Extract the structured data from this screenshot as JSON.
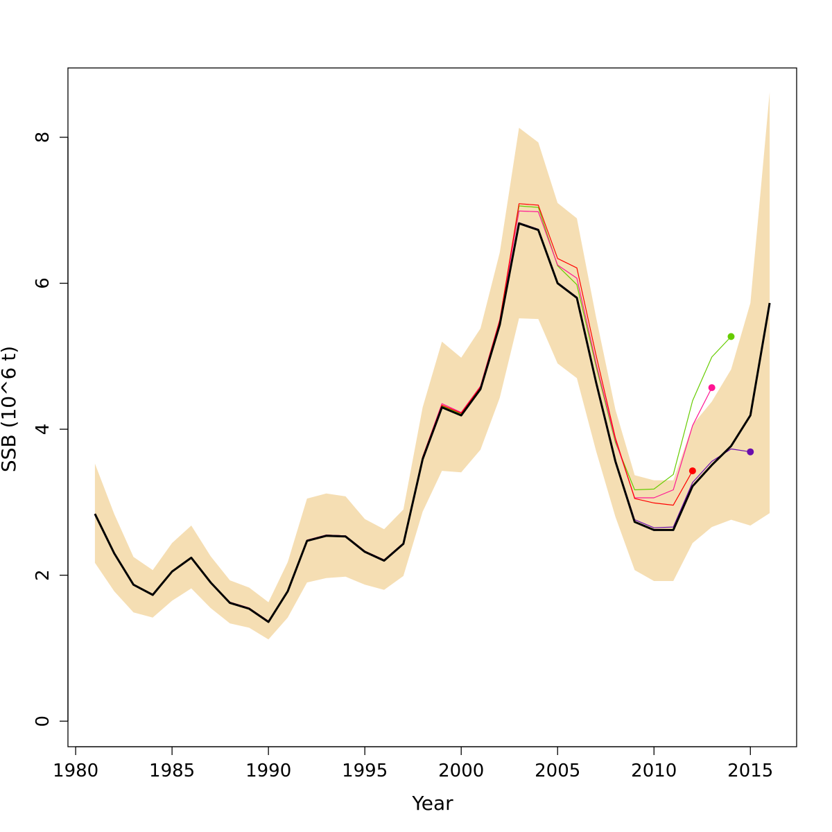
{
  "chart_data": {
    "type": "line",
    "xlabel": "Year",
    "ylabel": "SSB (10^6 t)",
    "xlim": [
      1979.6,
      2017.4
    ],
    "ylim": [
      -0.35,
      8.95
    ],
    "x_ticks": [
      1980,
      1985,
      1990,
      1995,
      2000,
      2005,
      2010,
      2015
    ],
    "y_ticks": [
      0,
      2,
      4,
      6,
      8
    ],
    "x_tick_labels": [
      "1980",
      "1985",
      "1990",
      "1995",
      "2000",
      "2005",
      "2010",
      "2015"
    ],
    "y_tick_labels": [
      "0",
      "2",
      "4",
      "6",
      "8"
    ],
    "grid": false,
    "band": {
      "color": "#F5DEB3",
      "x": [
        1981,
        1982,
        1983,
        1984,
        1985,
        1986,
        1987,
        1988,
        1989,
        1990,
        1991,
        1992,
        1993,
        1994,
        1995,
        1996,
        1997,
        1998,
        1999,
        2000,
        2001,
        2002,
        2003,
        2004,
        2005,
        2006,
        2007,
        2008,
        2009,
        2010,
        2011,
        2012,
        2013,
        2014,
        2015,
        2016
      ],
      "lower": [
        2.17,
        1.78,
        1.49,
        1.42,
        1.65,
        1.82,
        1.55,
        1.34,
        1.28,
        1.12,
        1.42,
        1.9,
        1.96,
        1.98,
        1.87,
        1.8,
        1.99,
        2.87,
        3.43,
        3.41,
        3.72,
        4.43,
        5.52,
        5.51,
        4.9,
        4.7,
        3.7,
        2.8,
        2.07,
        1.92,
        1.92,
        2.44,
        2.66,
        2.76,
        2.68,
        2.85
      ],
      "upper": [
        3.53,
        2.84,
        2.25,
        2.07,
        2.44,
        2.68,
        2.26,
        1.93,
        1.83,
        1.63,
        2.18,
        3.05,
        3.12,
        3.08,
        2.77,
        2.63,
        2.9,
        4.3,
        5.2,
        4.98,
        5.38,
        6.42,
        8.13,
        7.93,
        7.1,
        6.89,
        5.53,
        4.27,
        3.37,
        3.3,
        3.3,
        4.06,
        4.38,
        4.82,
        5.73,
        8.62
      ]
    },
    "series": [
      {
        "color": "#66CC00",
        "x": [
          1981,
          1982,
          1983,
          1984,
          1985,
          1986,
          1987,
          1988,
          1989,
          1990,
          1991,
          1992,
          1993,
          1994,
          1995,
          1996,
          1997,
          1998,
          1999,
          2000,
          2001,
          2002,
          2003,
          2004,
          2005,
          2006,
          2007,
          2008,
          2009,
          2010,
          2011,
          2012,
          2013,
          2014
        ],
        "values": [
          2.84,
          2.31,
          1.87,
          1.74,
          2.05,
          2.24,
          1.9,
          1.63,
          1.55,
          1.37,
          1.78,
          2.48,
          2.55,
          2.54,
          2.33,
          2.21,
          2.44,
          3.61,
          4.32,
          4.21,
          4.57,
          5.47,
          7.06,
          7.04,
          6.24,
          5.98,
          4.86,
          3.82,
          3.17,
          3.18,
          3.38,
          4.39,
          4.99,
          5.27
        ],
        "end_marker": true
      },
      {
        "color": "#FF1493",
        "x": [
          1981,
          1982,
          1983,
          1984,
          1985,
          1986,
          1987,
          1988,
          1989,
          1990,
          1991,
          1992,
          1993,
          1994,
          1995,
          1996,
          1997,
          1998,
          1999,
          2000,
          2001,
          2002,
          2003,
          2004,
          2005,
          2006,
          2007,
          2008,
          2009,
          2010,
          2011,
          2012,
          2013
        ],
        "values": [
          2.84,
          2.31,
          1.87,
          1.74,
          2.05,
          2.24,
          1.9,
          1.63,
          1.55,
          1.37,
          1.78,
          2.48,
          2.55,
          2.54,
          2.33,
          2.21,
          2.44,
          3.62,
          4.35,
          4.23,
          4.59,
          5.5,
          6.99,
          6.98,
          6.25,
          6.07,
          4.9,
          3.85,
          3.06,
          3.06,
          3.17,
          4.05,
          4.57
        ],
        "end_marker": true
      },
      {
        "color": "#FF0000",
        "x": [
          1981,
          1982,
          1983,
          1984,
          1985,
          1986,
          1987,
          1988,
          1989,
          1990,
          1991,
          1992,
          1993,
          1994,
          1995,
          1996,
          1997,
          1998,
          1999,
          2000,
          2001,
          2002,
          2003,
          2004,
          2005,
          2006,
          2007,
          2008,
          2009,
          2010,
          2011,
          2012
        ],
        "values": [
          2.84,
          2.31,
          1.87,
          1.74,
          2.05,
          2.24,
          1.9,
          1.63,
          1.55,
          1.37,
          1.78,
          2.48,
          2.55,
          2.54,
          2.33,
          2.21,
          2.44,
          3.62,
          4.33,
          4.22,
          4.58,
          5.49,
          7.09,
          7.07,
          6.34,
          6.21,
          5.01,
          3.88,
          3.05,
          2.99,
          2.96,
          3.43
        ],
        "end_marker": true
      },
      {
        "color": "#6A0DAD",
        "x": [
          1981,
          1982,
          1983,
          1984,
          1985,
          1986,
          1987,
          1988,
          1989,
          1990,
          1991,
          1992,
          1993,
          1994,
          1995,
          1996,
          1997,
          1998,
          1999,
          2000,
          2001,
          2002,
          2003,
          2004,
          2005,
          2006,
          2007,
          2008,
          2009,
          2010,
          2011,
          2012,
          2013,
          2014,
          2015
        ],
        "values": [
          2.84,
          2.31,
          1.87,
          1.74,
          2.05,
          2.24,
          1.9,
          1.63,
          1.55,
          1.37,
          1.78,
          2.48,
          2.55,
          2.54,
          2.33,
          2.21,
          2.44,
          3.6,
          4.31,
          4.19,
          4.56,
          5.45,
          6.83,
          6.74,
          6.01,
          5.81,
          4.65,
          3.58,
          2.76,
          2.65,
          2.66,
          3.27,
          3.56,
          3.73,
          3.69
        ],
        "end_marker": true
      },
      {
        "color": "#000000",
        "x": [
          1981,
          1982,
          1983,
          1984,
          1985,
          1986,
          1987,
          1988,
          1989,
          1990,
          1991,
          1992,
          1993,
          1994,
          1995,
          1996,
          1997,
          1998,
          1999,
          2000,
          2001,
          2002,
          2003,
          2004,
          2005,
          2006,
          2007,
          2008,
          2009,
          2010,
          2011,
          2012,
          2013,
          2014,
          2015,
          2016
        ],
        "values": [
          2.84,
          2.3,
          1.87,
          1.73,
          2.05,
          2.24,
          1.9,
          1.62,
          1.54,
          1.36,
          1.78,
          2.47,
          2.54,
          2.53,
          2.32,
          2.2,
          2.43,
          3.59,
          4.3,
          4.19,
          4.55,
          5.43,
          6.82,
          6.73,
          6.0,
          5.8,
          4.64,
          3.56,
          2.73,
          2.62,
          2.62,
          3.22,
          3.51,
          3.77,
          4.19,
          5.73
        ],
        "end_marker": false,
        "bold": true
      }
    ]
  }
}
